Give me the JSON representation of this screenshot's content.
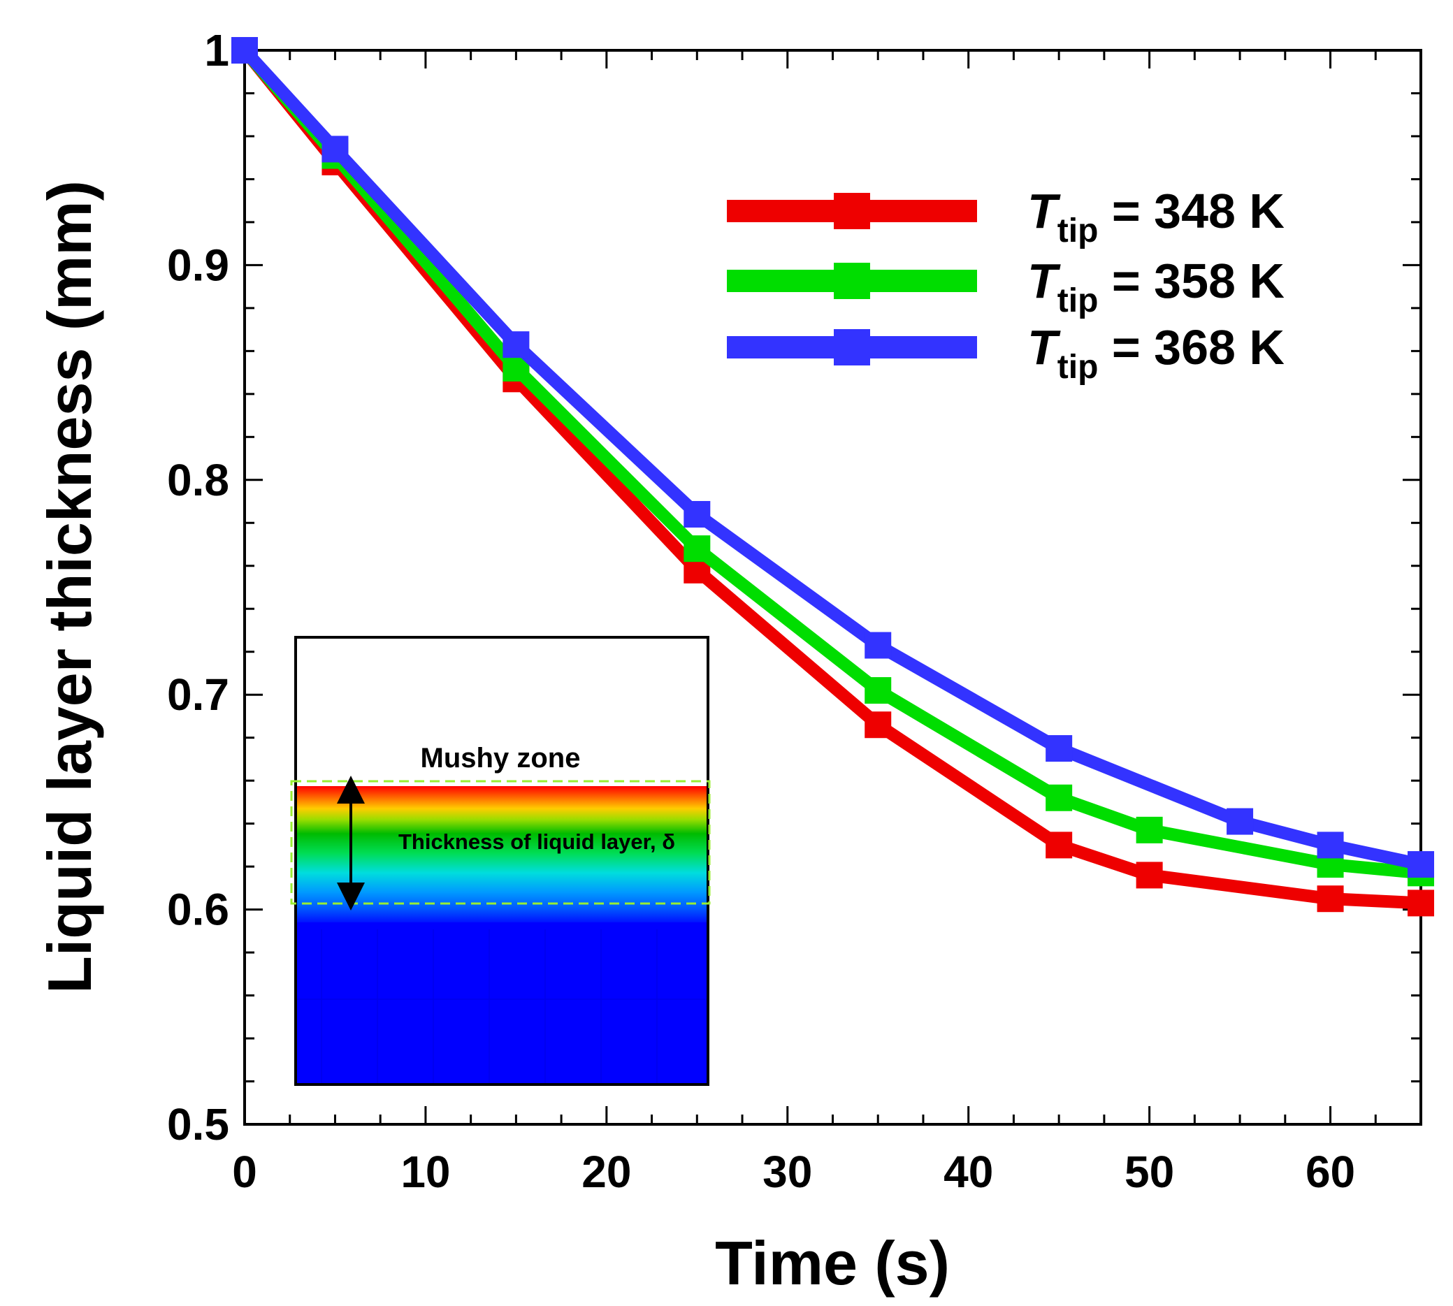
{
  "chart_data": {
    "type": "line",
    "title": "",
    "xlabel": "Time (s)",
    "ylabel": "Liquid layer thickness (mm)",
    "xlim": [
      0,
      65
    ],
    "ylim": [
      0.5,
      1.0
    ],
    "xticks": [
      0,
      10,
      20,
      30,
      40,
      50,
      60
    ],
    "xtick_labels": [
      "0",
      "10",
      "20",
      "30",
      "40",
      "50",
      "60"
    ],
    "yticks": [
      0.5,
      0.6,
      0.7,
      0.8,
      0.9,
      1.0
    ],
    "ytick_labels": [
      "0.5",
      "0.6",
      "0.7",
      "0.8",
      "0.9",
      "1"
    ],
    "grid": false,
    "legend_position": "top-right",
    "marker": "square",
    "series": [
      {
        "name": "T_tip = 348 K",
        "label_main": "T",
        "label_sub": "tip",
        "label_rest": " = 348 K",
        "color": "#ee0000",
        "x": [
          0,
          5,
          15,
          25,
          35,
          45,
          50,
          60,
          65
        ],
        "y": [
          1.0,
          0.948,
          0.847,
          0.758,
          0.686,
          0.63,
          0.616,
          0.605,
          0.603
        ]
      },
      {
        "name": "T_tip = 358 K",
        "label_main": "T",
        "label_sub": "tip",
        "label_rest": " = 358 K",
        "color": "#00dd00",
        "x": [
          0,
          5,
          15,
          25,
          35,
          45,
          50,
          60,
          65
        ],
        "y": [
          1.0,
          0.951,
          0.852,
          0.768,
          0.702,
          0.652,
          0.637,
          0.621,
          0.617
        ]
      },
      {
        "name": "T_tip = 368 K",
        "label_main": "T",
        "label_sub": "tip",
        "label_rest": " = 368 K",
        "color": "#3333ff",
        "x": [
          0,
          5,
          15,
          25,
          35,
          45,
          55,
          60,
          65
        ],
        "y": [
          1.0,
          0.954,
          0.863,
          0.784,
          0.723,
          0.675,
          0.641,
          0.63,
          0.621
        ]
      }
    ],
    "inset": {
      "mushy_label": "Mushy zone",
      "thickness_label": "Thickness of liquid layer, δ"
    }
  }
}
